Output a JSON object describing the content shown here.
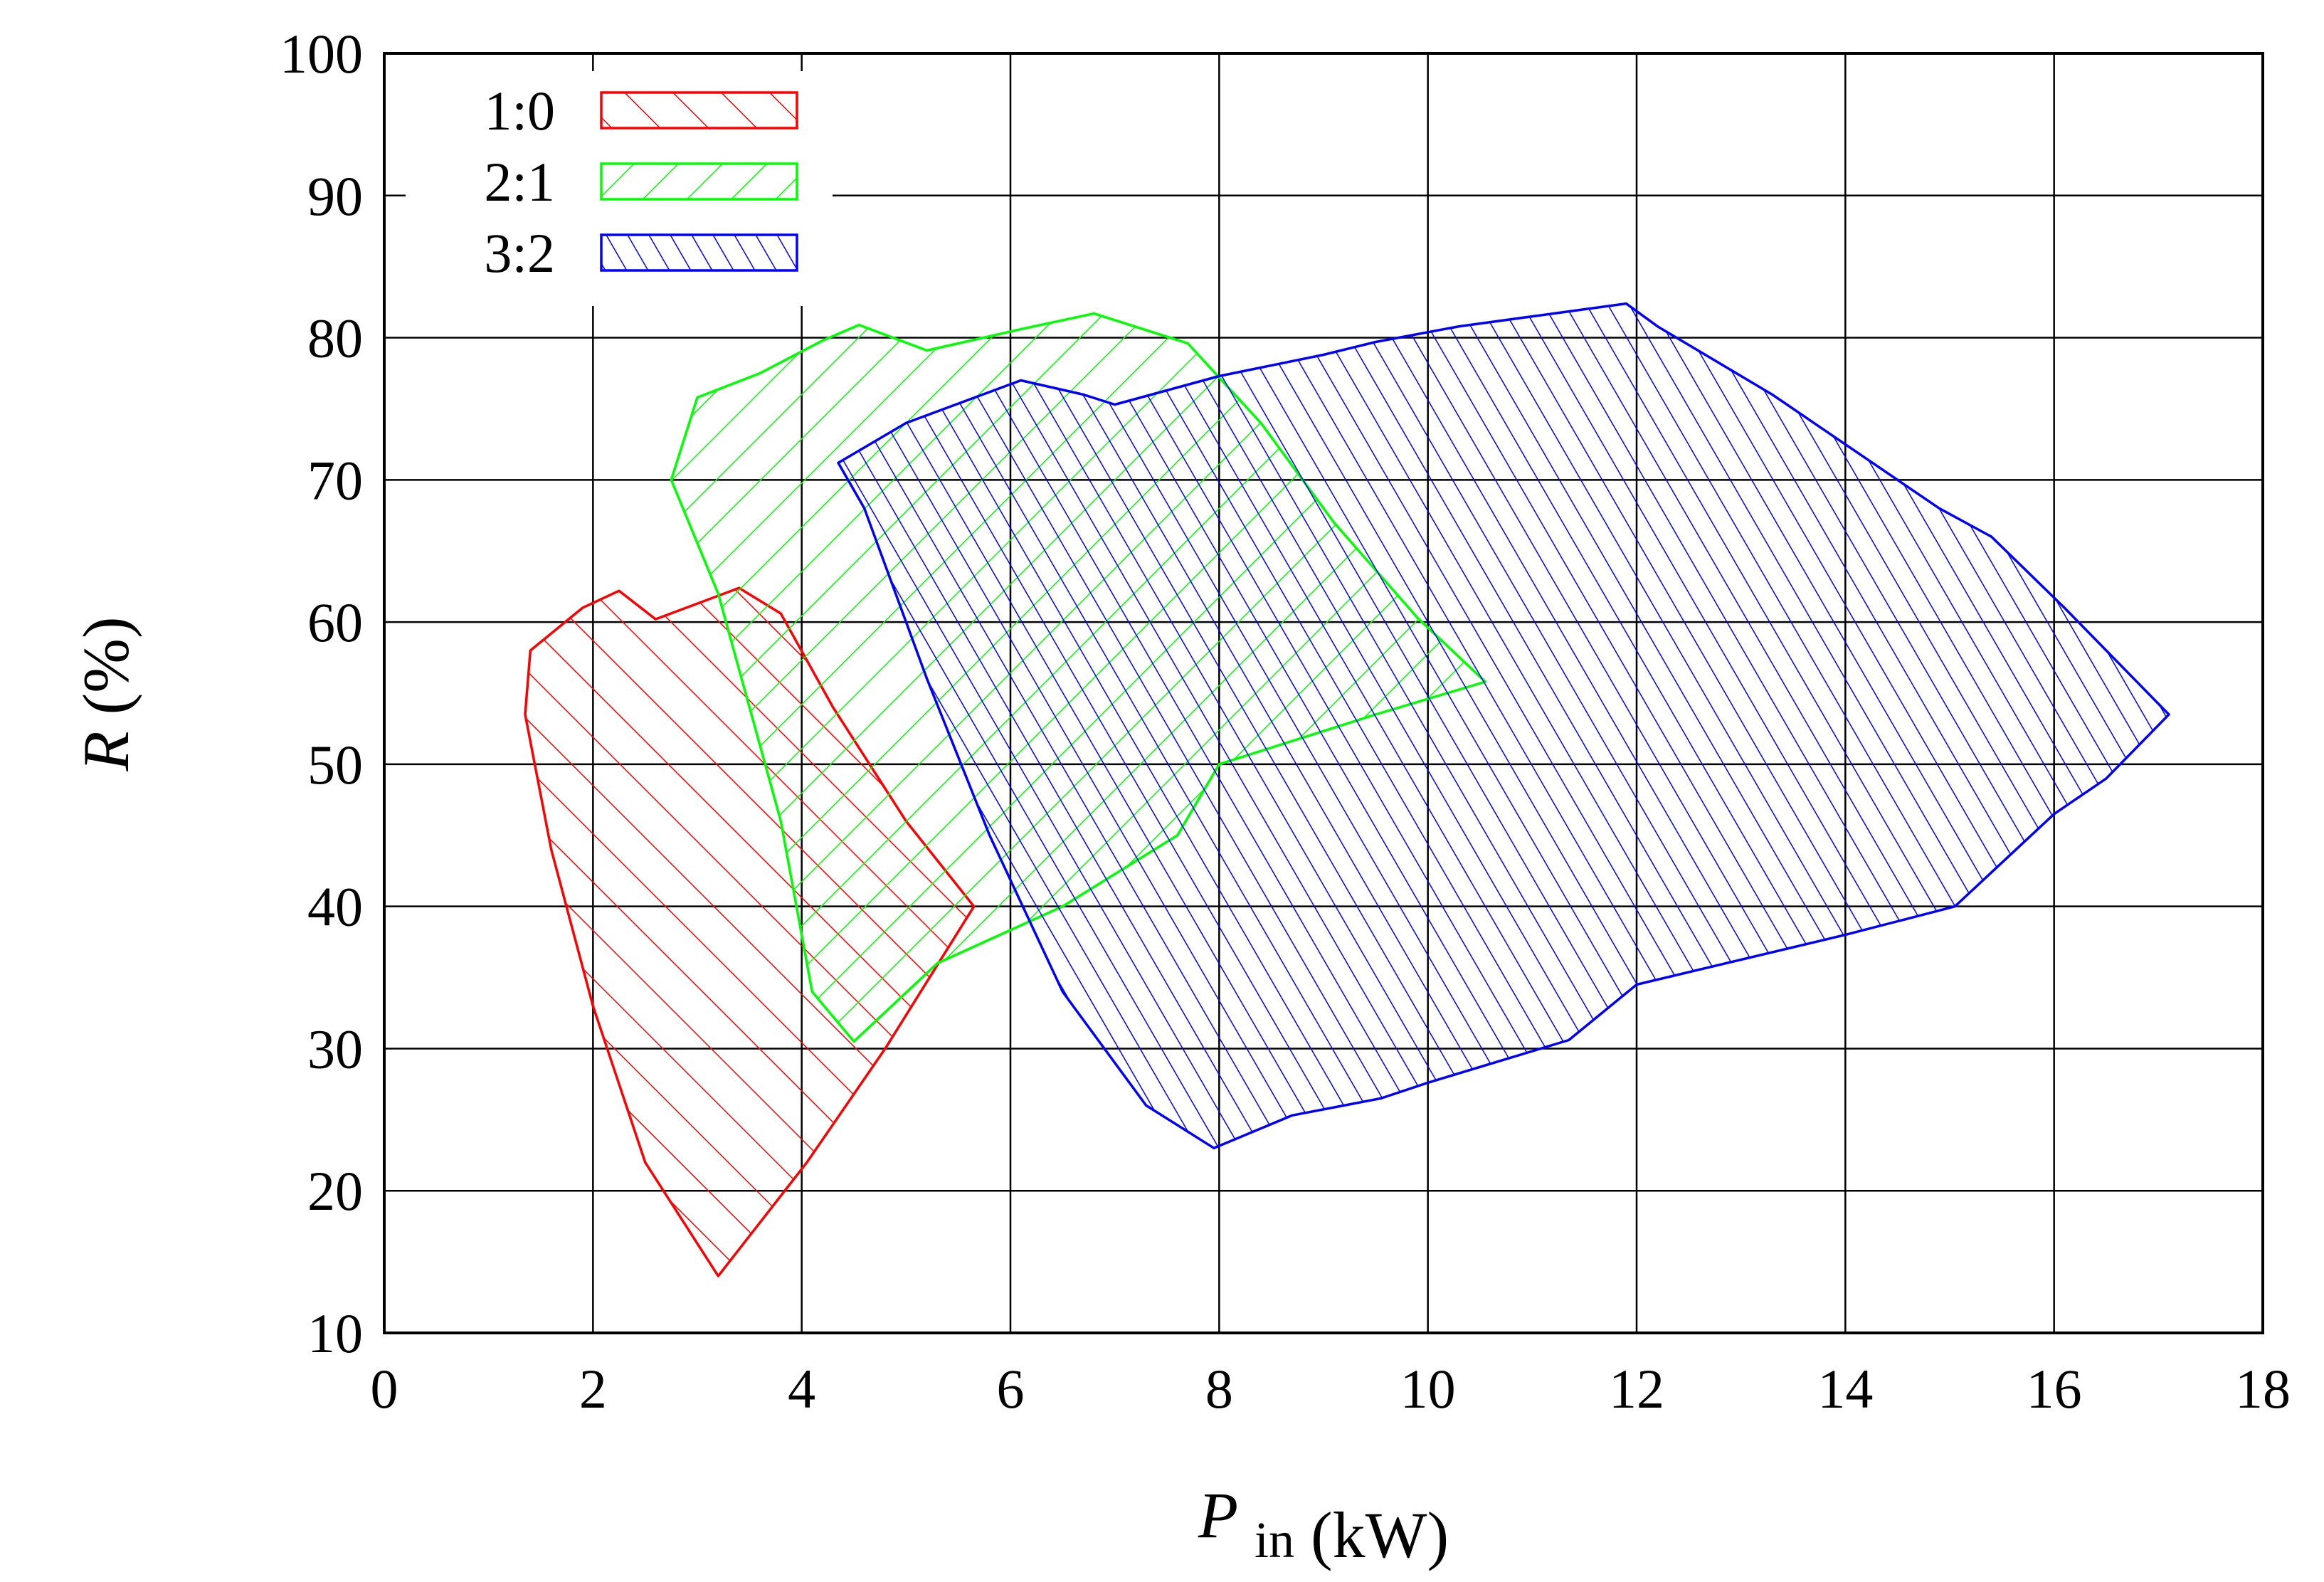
{
  "chart_data": {
    "type": "area",
    "title": "",
    "xlabel": {
      "symbol": "P",
      "subscript": "in",
      "unit": "(kW)"
    },
    "ylabel": {
      "symbol": "R",
      "unit": "(%)"
    },
    "xlim": [
      0,
      18
    ],
    "ylim": [
      10,
      100
    ],
    "xticks": [
      0,
      2,
      4,
      6,
      8,
      10,
      12,
      14,
      16,
      18
    ],
    "yticks": [
      10,
      20,
      30,
      40,
      50,
      60,
      70,
      80,
      90,
      100
    ],
    "xtick_labels": [
      "0",
      "2",
      "4",
      "6",
      "8",
      "10",
      "12",
      "14",
      "16",
      "18"
    ],
    "ytick_labels": [
      "10",
      "20",
      "30",
      "40",
      "50",
      "60",
      "70",
      "80",
      "90",
      "100"
    ],
    "grid": true,
    "legend_position": "top-left",
    "series": [
      {
        "name": "1:0",
        "color": "#ff0000",
        "hatch": "backslash",
        "polygon": [
          [
            1.4,
            58.0
          ],
          [
            1.9,
            61.0
          ],
          [
            2.25,
            62.2
          ],
          [
            2.6,
            60.2
          ],
          [
            3.4,
            62.4
          ],
          [
            3.8,
            60.6
          ],
          [
            4.3,
            54.0
          ],
          [
            5.0,
            46.0
          ],
          [
            5.65,
            40.0
          ],
          [
            4.8,
            30.0
          ],
          [
            4.05,
            22.0
          ],
          [
            3.2,
            14.0
          ],
          [
            2.5,
            22.0
          ],
          [
            2.0,
            33.0
          ],
          [
            1.6,
            44.0
          ],
          [
            1.35,
            53.5
          ]
        ]
      },
      {
        "name": "2:1",
        "color": "#00ff00",
        "hatch": "slash",
        "polygon": [
          [
            2.75,
            70.0
          ],
          [
            3.0,
            75.8
          ],
          [
            3.6,
            77.5
          ],
          [
            4.2,
            79.8
          ],
          [
            4.55,
            80.9
          ],
          [
            5.2,
            79.1
          ],
          [
            6.1,
            80.6
          ],
          [
            6.8,
            81.7
          ],
          [
            7.7,
            79.6
          ],
          [
            8.4,
            74.0
          ],
          [
            9.1,
            67.0
          ],
          [
            9.9,
            60.3
          ],
          [
            10.55,
            55.8
          ],
          [
            9.5,
            53.5
          ],
          [
            8.0,
            50.0
          ],
          [
            7.6,
            45.0
          ],
          [
            6.5,
            40.0
          ],
          [
            5.3,
            36.0
          ],
          [
            4.5,
            30.5
          ],
          [
            4.1,
            34.0
          ],
          [
            3.8,
            46.0
          ],
          [
            3.2,
            62.0
          ]
        ]
      },
      {
        "name": "3:2",
        "color": "#0000ff",
        "hatch": "backslash-dense",
        "polygon": [
          [
            4.35,
            71.2
          ],
          [
            5.0,
            74.0
          ],
          [
            6.1,
            77.0
          ],
          [
            6.7,
            76.0
          ],
          [
            7.0,
            75.3
          ],
          [
            7.5,
            76.3
          ],
          [
            8.0,
            77.3
          ],
          [
            9.0,
            78.8
          ],
          [
            9.5,
            79.7
          ],
          [
            10.3,
            80.8
          ],
          [
            11.2,
            81.7
          ],
          [
            11.9,
            82.4
          ],
          [
            12.2,
            80.8
          ],
          [
            13.3,
            76.0
          ],
          [
            14.9,
            68.0
          ],
          [
            15.4,
            66.0
          ],
          [
            16.1,
            61.0
          ],
          [
            17.1,
            53.5
          ],
          [
            16.5,
            49.0
          ],
          [
            16.0,
            46.5
          ],
          [
            15.05,
            40.0
          ],
          [
            14.0,
            38.0
          ],
          [
            12.0,
            34.5
          ],
          [
            11.35,
            30.6
          ],
          [
            10.0,
            27.6
          ],
          [
            9.55,
            26.5
          ],
          [
            8.7,
            25.3
          ],
          [
            7.95,
            23.0
          ],
          [
            7.3,
            26.0
          ],
          [
            6.5,
            34.0
          ],
          [
            5.8,
            45.0
          ],
          [
            5.2,
            56.0
          ],
          [
            4.6,
            68.0
          ]
        ]
      }
    ]
  }
}
